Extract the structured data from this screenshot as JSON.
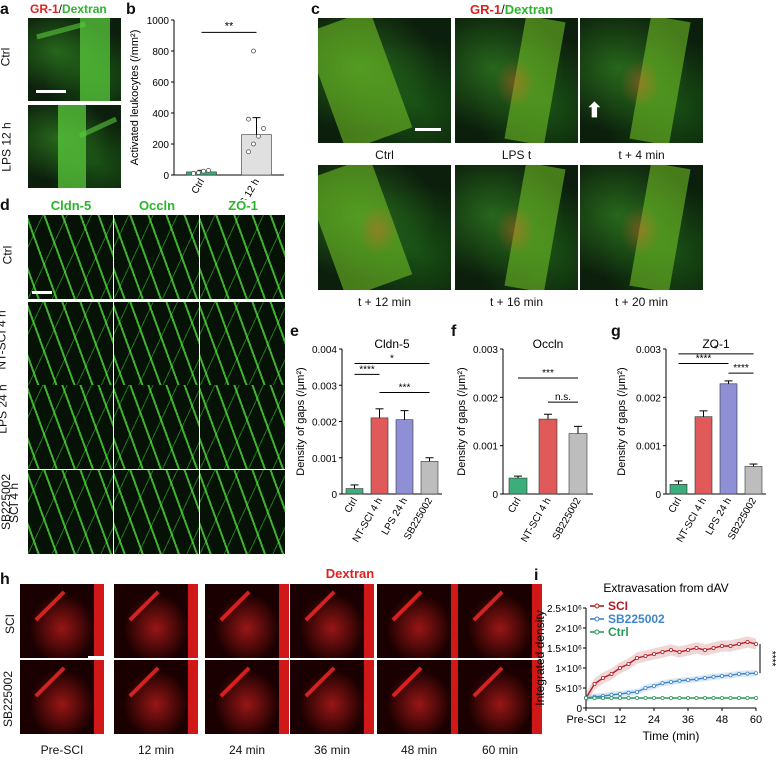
{
  "panel_letters": {
    "a": "a",
    "b": "b",
    "c": "c",
    "d": "d",
    "e": "e",
    "f": "f",
    "g": "g",
    "h": "h",
    "i": "i"
  },
  "stain_gr1": "GR-1",
  "stain_sep": "/",
  "stain_dextran": "Dextran",
  "panel_a": {
    "rows": [
      "Ctrl",
      "LPS 12 h"
    ]
  },
  "panel_c": {
    "captions": [
      "Ctrl",
      "LPS t",
      "t + 4 min",
      "t + 12 min",
      "t + 16 min",
      "t + 20 min"
    ]
  },
  "panel_d": {
    "columns": [
      "Cldn-5",
      "Occln",
      "ZO-1"
    ],
    "rows": [
      "Ctrl",
      "NT-SCI 4 h",
      "LPS 24 h",
      "SB225002",
      "SCI 4 h"
    ]
  },
  "panel_h": {
    "title": "Dextran",
    "rows": [
      "SCI",
      "SB225002"
    ],
    "times": [
      "Pre-SCI",
      "12 min",
      "24 min",
      "36 min",
      "48 min",
      "60 min"
    ]
  },
  "colors": {
    "ctrl": "#3cae7c",
    "nt": "#e05a5a",
    "lps": "#8f8fd6",
    "sb": "#bdbdbd",
    "sci_line": "#b21e23",
    "sb_line": "#3f86c9",
    "ctrl_line": "#2a9a5a",
    "green_txt": "#2bb52b",
    "red_txt": "#e02020"
  },
  "chart_data": [
    {
      "id": "b",
      "type": "bar",
      "categories": [
        "Ctrl",
        "LPS 12 h"
      ],
      "values": [
        20,
        260
      ],
      "errors": [
        10,
        110
      ],
      "points": [
        [
          10,
          15,
          25,
          30
        ],
        [
          150,
          200,
          250,
          300,
          360,
          800
        ]
      ],
      "ylabel": "Activated leukocytes (/mm²)",
      "ylim": [
        0,
        1000
      ],
      "yticks": [
        "0",
        "200",
        "400",
        "600",
        "800",
        "1000"
      ],
      "significance": "**"
    },
    {
      "id": "e",
      "type": "bar",
      "title": "Cldn-5",
      "categories": [
        "Ctrl",
        "NT-SCI 4 h",
        "LPS 24 h",
        "SB225002"
      ],
      "values": [
        0.00015,
        0.0021,
        0.00205,
        0.0009
      ],
      "errors": [
        0.0001,
        0.00025,
        0.00025,
        0.0001
      ],
      "ylabel": "Density of gaps (/μm²)",
      "ylim": [
        0,
        0.004
      ],
      "yticks": [
        "0",
        "0.001",
        "0.002",
        "0.003",
        "0.004"
      ],
      "significance": [
        "*",
        "****",
        "***"
      ]
    },
    {
      "id": "f",
      "type": "bar",
      "title": "Occln",
      "categories": [
        "Ctrl",
        "NT-SCI 4 h",
        "SB225002"
      ],
      "values": [
        0.00033,
        0.00155,
        0.00125
      ],
      "errors": [
        4e-05,
        0.0001,
        0.00015
      ],
      "ylabel": "Density of gaps (/μm²)",
      "ylim": [
        0,
        0.003
      ],
      "yticks": [
        "0",
        "0.001",
        "0.002",
        "0.003"
      ],
      "significance": [
        "***",
        "n.s."
      ]
    },
    {
      "id": "g",
      "type": "bar",
      "title": "ZO-1",
      "categories": [
        "Ctrl",
        "NT-SCI 4 h",
        "LPS 24 h",
        "SB225002"
      ],
      "values": [
        0.0002,
        0.0016,
        0.00228,
        0.00057
      ],
      "errors": [
        7e-05,
        0.00012,
        6e-05,
        5e-05
      ],
      "ylabel": "Density of gaps (/μm²)",
      "ylim": [
        0,
        0.003
      ],
      "yticks": [
        "0",
        "0.001",
        "0.002",
        "0.003"
      ],
      "significance": [
        "*",
        "****",
        "****"
      ]
    },
    {
      "id": "i",
      "type": "line",
      "title": "Extravasation from dAV",
      "x": [
        0,
        3,
        6,
        9,
        12,
        15,
        18,
        21,
        24,
        27,
        30,
        33,
        36,
        39,
        42,
        45,
        48,
        51,
        54,
        57,
        60
      ],
      "xticks": [
        "Pre-SCI",
        "12",
        "24",
        "36",
        "48",
        "60"
      ],
      "xlabel": "Time (min)",
      "ylabel": "Integrated density",
      "yticks": [
        "0",
        "5×10⁵",
        "1×10⁶",
        "1.5×10⁶",
        "2×10⁶",
        "2.5×10⁶"
      ],
      "ylim": [
        0,
        2500000
      ],
      "series": [
        {
          "name": "SCI",
          "values": [
            250000,
            600000,
            750000,
            850000,
            1000000,
            1100000,
            1250000,
            1300000,
            1350000,
            1400000,
            1450000,
            1400000,
            1450000,
            1500000,
            1450000,
            1500000,
            1550000,
            1550000,
            1600000,
            1650000,
            1600000
          ]
        },
        {
          "name": "SB225002",
          "values": [
            250000,
            280000,
            300000,
            330000,
            350000,
            380000,
            400000,
            500000,
            550000,
            620000,
            650000,
            680000,
            700000,
            720000,
            750000,
            780000,
            800000,
            820000,
            850000,
            860000,
            870000
          ]
        },
        {
          "name": "Ctrl",
          "values": [
            250000,
            250000,
            250000,
            250000,
            250000,
            250000,
            250000,
            250000,
            250000,
            250000,
            250000,
            250000,
            250000,
            250000,
            250000,
            250000,
            250000,
            250000,
            250000,
            250000,
            250000
          ]
        }
      ],
      "significance": "****"
    }
  ]
}
